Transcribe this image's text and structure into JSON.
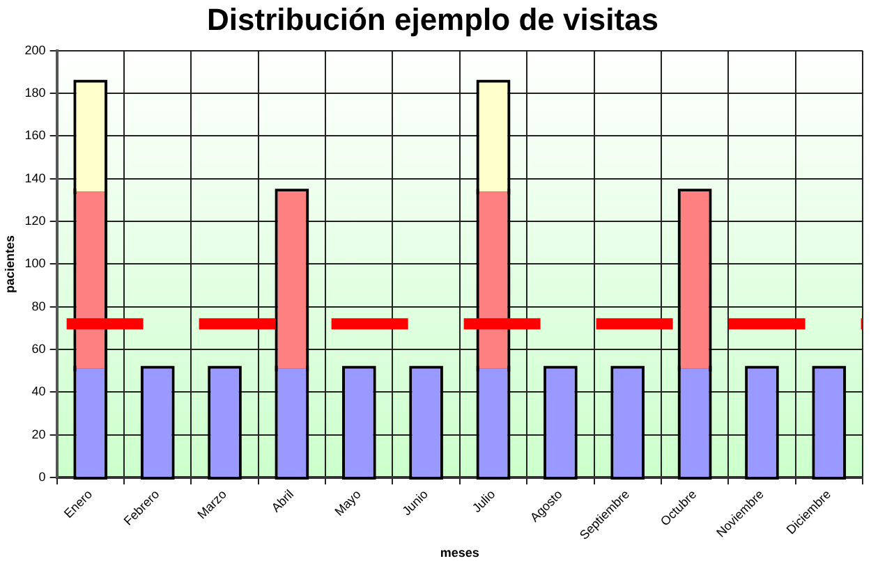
{
  "chart_data": {
    "type": "bar",
    "title": "Distribución ejemplo de visitas",
    "xlabel": "meses",
    "ylabel": "pacientes",
    "categories": [
      "Enero",
      "Febrero",
      "Marzo",
      "Abril",
      "Mayo",
      "Junio",
      "Julio",
      "Agosto",
      "Septiembre",
      "Octubre",
      "Noviembre",
      "Diciembre"
    ],
    "series": [
      {
        "color": "#9999ff",
        "values": [
          51,
          51,
          51,
          51,
          51,
          51,
          51,
          51,
          51,
          51,
          51,
          51
        ]
      },
      {
        "color": "#ff8080",
        "values": [
          83,
          null,
          null,
          83,
          null,
          null,
          83,
          null,
          null,
          83,
          null,
          null
        ]
      },
      {
        "color": "#ffffcc",
        "values": [
          51,
          null,
          null,
          null,
          null,
          null,
          51,
          null,
          null,
          null,
          null,
          null
        ]
      }
    ],
    "stacked": true,
    "ylim": [
      0,
      200
    ],
    "yticks": [
      0,
      20,
      40,
      60,
      80,
      100,
      120,
      140,
      160,
      180,
      200
    ],
    "grid": true,
    "ref_lines": [
      {
        "axis": "y",
        "value": 72,
        "color": "#ff0000",
        "line_style": "dashed"
      }
    ]
  }
}
